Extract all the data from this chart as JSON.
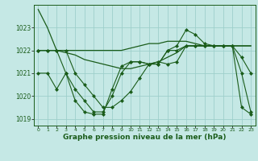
{
  "background_color": "#c5e8e5",
  "grid_color": "#9ecfcb",
  "line_color": "#1a5c1a",
  "xlabel": "Graphe pression niveau de la mer (hPa)",
  "xlabel_fontsize": 6.5,
  "ylim": [
    1018.7,
    1024.0
  ],
  "xlim": [
    -0.5,
    23.5
  ],
  "yticks": [
    1019,
    1020,
    1021,
    1022,
    1023
  ],
  "xticks": [
    0,
    1,
    2,
    3,
    4,
    5,
    6,
    7,
    8,
    9,
    10,
    11,
    12,
    13,
    14,
    15,
    16,
    17,
    18,
    19,
    20,
    21,
    22,
    23
  ],
  "series": [
    {
      "x": [
        0,
        1,
        2,
        3,
        4,
        5,
        6,
        7,
        8,
        9,
        10,
        11,
        12,
        13,
        14,
        15,
        16,
        17,
        18,
        19,
        20,
        21,
        22,
        23
      ],
      "y": [
        1023.8,
        1023.0,
        1022.0,
        1022.0,
        1022.0,
        1022.0,
        1022.0,
        1022.0,
        1022.0,
        1022.0,
        1022.1,
        1022.2,
        1022.3,
        1022.3,
        1022.4,
        1022.4,
        1022.4,
        1022.3,
        1022.2,
        1022.2,
        1022.2,
        1022.2,
        1022.2,
        1022.2
      ],
      "marker": null,
      "markersize": 0,
      "linewidth": 0.9
    },
    {
      "x": [
        0,
        1,
        2,
        3,
        4,
        5,
        6,
        7,
        8,
        9,
        10,
        11,
        12,
        13,
        14,
        15,
        16,
        17,
        18,
        19,
        20,
        21,
        22,
        23
      ],
      "y": [
        1022.0,
        1022.0,
        1022.0,
        1021.9,
        1021.8,
        1021.6,
        1021.5,
        1021.4,
        1021.3,
        1021.2,
        1021.2,
        1021.3,
        1021.4,
        1021.5,
        1021.7,
        1021.9,
        1022.2,
        1022.2,
        1022.2,
        1022.2,
        1022.2,
        1022.2,
        1022.2,
        1022.2
      ],
      "marker": null,
      "markersize": 0,
      "linewidth": 0.9
    },
    {
      "x": [
        0,
        1,
        2,
        3,
        4,
        5,
        6,
        7,
        8,
        9,
        10,
        11,
        12,
        13,
        14,
        15,
        16,
        17,
        18,
        19,
        20,
        21,
        22,
        23
      ],
      "y": [
        1022.0,
        1022.0,
        1022.0,
        1021.0,
        1020.3,
        1019.8,
        1019.3,
        1019.3,
        1020.0,
        1021.0,
        1021.5,
        1021.5,
        1021.4,
        1021.4,
        1022.0,
        1022.2,
        1022.9,
        1022.7,
        1022.3,
        1022.2,
        1022.2,
        1022.2,
        1021.0,
        1019.3
      ],
      "marker": "D",
      "markersize": 2.0,
      "linewidth": 0.8
    },
    {
      "x": [
        0,
        1,
        2,
        3,
        4,
        5,
        6,
        7,
        8,
        9,
        10,
        11,
        12,
        13,
        14,
        15,
        16,
        17,
        18,
        19,
        20,
        21,
        22,
        23
      ],
      "y": [
        1021.0,
        1021.0,
        1020.3,
        1021.0,
        1019.8,
        1019.3,
        1019.2,
        1019.2,
        1020.3,
        1021.3,
        1021.5,
        1021.5,
        1021.4,
        1021.4,
        1022.0,
        1022.0,
        1022.2,
        1022.2,
        1022.2,
        1022.2,
        1022.2,
        1022.2,
        1021.7,
        1021.0
      ],
      "marker": "D",
      "markersize": 2.0,
      "linewidth": 0.8
    },
    {
      "x": [
        0,
        1,
        2,
        3,
        4,
        5,
        6,
        7,
        8,
        9,
        10,
        11,
        12,
        13,
        14,
        15,
        16,
        17,
        18,
        19,
        20,
        21,
        22,
        23
      ],
      "y": [
        1022.0,
        1022.0,
        1022.0,
        1022.0,
        1021.0,
        1020.5,
        1020.0,
        1019.5,
        1019.5,
        1019.8,
        1020.2,
        1020.8,
        1021.4,
        1021.5,
        1021.4,
        1021.5,
        1022.2,
        1022.2,
        1022.2,
        1022.2,
        1022.2,
        1022.2,
        1019.5,
        1019.2
      ],
      "marker": "D",
      "markersize": 2.0,
      "linewidth": 0.8
    }
  ]
}
